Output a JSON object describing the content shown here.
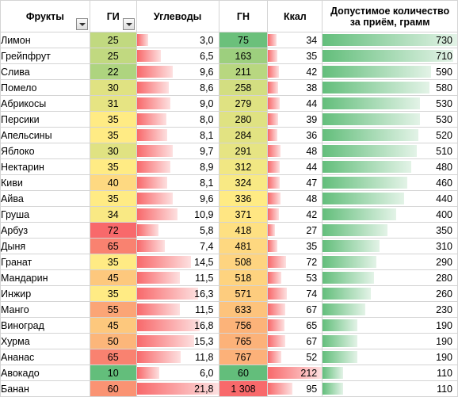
{
  "colors": {
    "gi_green": "#63be7b",
    "gi_yellow": "#ffeb84",
    "gi_red": "#f8696b",
    "bar_red": "#f8696b",
    "bar_green": "#63be7b"
  },
  "headers": {
    "fruit": "Фрукты",
    "gi": "ГИ",
    "carbs": "Углеводы",
    "gn": "ГН",
    "kcal": "Ккал",
    "portion": "Допустимое количество за приём, грамм"
  },
  "rows": [
    {
      "fruit": "Лимон",
      "gi": "25",
      "carbs": "3,0",
      "gn": "75",
      "kcal": "34",
      "portion": "730",
      "carbs_v": 3.0,
      "gn_v": 75,
      "kcal_v": 34,
      "portion_v": 730,
      "gi_v": 25
    },
    {
      "fruit": "Грейпфрут",
      "gi": "25",
      "carbs": "6,5",
      "gn": "163",
      "kcal": "35",
      "portion": "710",
      "carbs_v": 6.5,
      "gn_v": 163,
      "kcal_v": 35,
      "portion_v": 710,
      "gi_v": 25
    },
    {
      "fruit": "Слива",
      "gi": "22",
      "carbs": "9,6",
      "gn": "211",
      "kcal": "42",
      "portion": "590",
      "carbs_v": 9.6,
      "gn_v": 211,
      "kcal_v": 42,
      "portion_v": 590,
      "gi_v": 22
    },
    {
      "fruit": "Помело",
      "gi": "30",
      "carbs": "8,6",
      "gn": "258",
      "kcal": "38",
      "portion": "580",
      "carbs_v": 8.6,
      "gn_v": 258,
      "kcal_v": 38,
      "portion_v": 580,
      "gi_v": 30
    },
    {
      "fruit": "Абрикосы",
      "gi": "31",
      "carbs": "9,0",
      "gn": "279",
      "kcal": "44",
      "portion": "530",
      "carbs_v": 9.0,
      "gn_v": 279,
      "kcal_v": 44,
      "portion_v": 530,
      "gi_v": 31
    },
    {
      "fruit": "Персики",
      "gi": "35",
      "carbs": "8,0",
      "gn": "280",
      "kcal": "39",
      "portion": "530",
      "carbs_v": 8.0,
      "gn_v": 280,
      "kcal_v": 39,
      "portion_v": 530,
      "gi_v": 35
    },
    {
      "fruit": "Апельсины",
      "gi": "35",
      "carbs": "8,1",
      "gn": "284",
      "kcal": "36",
      "portion": "520",
      "carbs_v": 8.1,
      "gn_v": 284,
      "kcal_v": 36,
      "portion_v": 520,
      "gi_v": 35
    },
    {
      "fruit": "Яблоко",
      "gi": "30",
      "carbs": "9,7",
      "gn": "291",
      "kcal": "48",
      "portion": "510",
      "carbs_v": 9.7,
      "gn_v": 291,
      "kcal_v": 48,
      "portion_v": 510,
      "gi_v": 30
    },
    {
      "fruit": "Нектарин",
      "gi": "35",
      "carbs": "8,9",
      "gn": "312",
      "kcal": "44",
      "portion": "480",
      "carbs_v": 8.9,
      "gn_v": 312,
      "kcal_v": 44,
      "portion_v": 480,
      "gi_v": 35
    },
    {
      "fruit": "Киви",
      "gi": "40",
      "carbs": "8,1",
      "gn": "324",
      "kcal": "47",
      "portion": "460",
      "carbs_v": 8.1,
      "gn_v": 324,
      "kcal_v": 47,
      "portion_v": 460,
      "gi_v": 40
    },
    {
      "fruit": "Айва",
      "gi": "35",
      "carbs": "9,6",
      "gn": "336",
      "kcal": "48",
      "portion": "440",
      "carbs_v": 9.6,
      "gn_v": 336,
      "kcal_v": 48,
      "portion_v": 440,
      "gi_v": 35
    },
    {
      "fruit": "Груша",
      "gi": "34",
      "carbs": "10,9",
      "gn": "371",
      "kcal": "42",
      "portion": "400",
      "carbs_v": 10.9,
      "gn_v": 371,
      "kcal_v": 42,
      "portion_v": 400,
      "gi_v": 34
    },
    {
      "fruit": "Арбуз",
      "gi": "72",
      "carbs": "5,8",
      "gn": "418",
      "kcal": "27",
      "portion": "350",
      "carbs_v": 5.8,
      "gn_v": 418,
      "kcal_v": 27,
      "portion_v": 350,
      "gi_v": 72
    },
    {
      "fruit": "Дыня",
      "gi": "65",
      "carbs": "7,4",
      "gn": "481",
      "kcal": "35",
      "portion": "310",
      "carbs_v": 7.4,
      "gn_v": 481,
      "kcal_v": 35,
      "portion_v": 310,
      "gi_v": 65
    },
    {
      "fruit": "Гранат",
      "gi": "35",
      "carbs": "14,5",
      "gn": "508",
      "kcal": "72",
      "portion": "290",
      "carbs_v": 14.5,
      "gn_v": 508,
      "kcal_v": 72,
      "portion_v": 290,
      "gi_v": 35
    },
    {
      "fruit": "Мандарин",
      "gi": "45",
      "carbs": "11,5",
      "gn": "518",
      "kcal": "53",
      "portion": "280",
      "carbs_v": 11.5,
      "gn_v": 518,
      "kcal_v": 53,
      "portion_v": 280,
      "gi_v": 45
    },
    {
      "fruit": "Инжир",
      "gi": "35",
      "carbs": "16,3",
      "gn": "571",
      "kcal": "74",
      "portion": "260",
      "carbs_v": 16.3,
      "gn_v": 571,
      "kcal_v": 74,
      "portion_v": 260,
      "gi_v": 35
    },
    {
      "fruit": "Манго",
      "gi": "55",
      "carbs": "11,5",
      "gn": "633",
      "kcal": "67",
      "portion": "230",
      "carbs_v": 11.5,
      "gn_v": 633,
      "kcal_v": 67,
      "portion_v": 230,
      "gi_v": 55
    },
    {
      "fruit": "Виноград",
      "gi": "45",
      "carbs": "16,8",
      "gn": "756",
      "kcal": "65",
      "portion": "190",
      "carbs_v": 16.8,
      "gn_v": 756,
      "kcal_v": 65,
      "portion_v": 190,
      "gi_v": 45
    },
    {
      "fruit": "Хурма",
      "gi": "50",
      "carbs": "15,3",
      "gn": "765",
      "kcal": "67",
      "portion": "190",
      "carbs_v": 15.3,
      "gn_v": 765,
      "kcal_v": 67,
      "portion_v": 190,
      "gi_v": 50
    },
    {
      "fruit": "Ананас",
      "gi": "65",
      "carbs": "11,8",
      "gn": "767",
      "kcal": "52",
      "portion": "190",
      "carbs_v": 11.8,
      "gn_v": 767,
      "kcal_v": 52,
      "portion_v": 190,
      "gi_v": 65
    },
    {
      "fruit": "Авокадо",
      "gi": "10",
      "carbs": "6,0",
      "gn": "60",
      "kcal": "212",
      "portion": "110",
      "carbs_v": 6.0,
      "gn_v": 60,
      "kcal_v": 212,
      "portion_v": 110,
      "gi_v": 10
    },
    {
      "fruit": "Банан",
      "gi": "60",
      "carbs": "21,8",
      "gn": "1 308",
      "kcal": "95",
      "portion": "110",
      "carbs_v": 21.8,
      "gn_v": 1308,
      "kcal_v": 95,
      "portion_v": 110,
      "gi_v": 60
    }
  ]
}
